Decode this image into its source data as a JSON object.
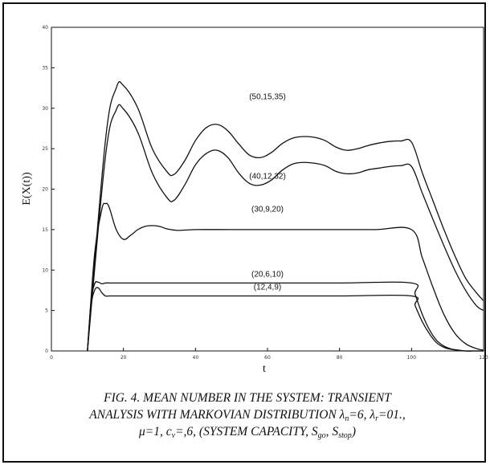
{
  "chart_data": {
    "type": "line",
    "xlabel": "t",
    "ylabel": "E(X(t))",
    "xlim": [
      0,
      120
    ],
    "ylim": [
      0,
      40
    ],
    "x_ticks": [
      "0",
      "20",
      "40",
      "60",
      "80",
      "100",
      "120"
    ],
    "y_ticks": [
      "0",
      "5",
      "10",
      "15",
      "20",
      "25",
      "30",
      "35",
      "40"
    ],
    "grid": false,
    "legend": "none",
    "series": [
      {
        "name": "(50,15,35)",
        "x": [
          10,
          15,
          18,
          20,
          24,
          28,
          32,
          34,
          37,
          40,
          43,
          46,
          49,
          52,
          55,
          58,
          61,
          64,
          67,
          70,
          73,
          76,
          79,
          82,
          85,
          88,
          91,
          94,
          97,
          100,
          103,
          106,
          109,
          112,
          115,
          118,
          120
        ],
        "y": [
          0,
          26,
          32.5,
          32.8,
          30.0,
          25.0,
          22.2,
          21.8,
          23.5,
          26.0,
          27.6,
          28.0,
          27.2,
          25.6,
          24.2,
          23.9,
          24.5,
          25.6,
          26.3,
          26.5,
          26.4,
          26.0,
          25.2,
          24.8,
          25.0,
          25.4,
          25.7,
          25.9,
          25.95,
          25.8,
          22.0,
          18.5,
          15.0,
          11.8,
          9.0,
          7.2,
          6.2
        ]
      },
      {
        "name": "(40,12,32)",
        "x": [
          10,
          15,
          18,
          20,
          24,
          28,
          32,
          34,
          37,
          40,
          43,
          46,
          49,
          52,
          55,
          58,
          61,
          64,
          67,
          70,
          73,
          76,
          79,
          82,
          85,
          88,
          91,
          94,
          97,
          100,
          103,
          106,
          109,
          112,
          115,
          118,
          120
        ],
        "y": [
          0,
          24,
          29.8,
          29.9,
          27.0,
          22.0,
          19.0,
          18.6,
          20.5,
          23.0,
          24.4,
          24.8,
          23.9,
          22.0,
          20.7,
          20.5,
          21.1,
          22.3,
          23.1,
          23.3,
          23.2,
          22.9,
          22.2,
          21.9,
          22.0,
          22.4,
          22.6,
          22.8,
          22.9,
          22.8,
          19.5,
          16.2,
          13.0,
          10.0,
          7.5,
          5.6,
          5.0
        ]
      },
      {
        "name": "(30,9,20)",
        "x": [
          10,
          12,
          14,
          15,
          16,
          18,
          20,
          22,
          24,
          26,
          28,
          30,
          32,
          35,
          40,
          50,
          60,
          70,
          80,
          90,
          100,
          103,
          106,
          109,
          112,
          115,
          118,
          120
        ],
        "y": [
          0,
          12,
          17.5,
          18.2,
          17.8,
          15.0,
          13.8,
          14.3,
          15.0,
          15.4,
          15.5,
          15.4,
          15.1,
          14.9,
          15.0,
          15.0,
          15.0,
          15.0,
          15.0,
          15.0,
          15.0,
          11.5,
          7.8,
          4.5,
          2.2,
          0.9,
          0.3,
          0.1
        ]
      },
      {
        "name": "(20,6,10)",
        "x": [
          10,
          11,
          12,
          13,
          14,
          15,
          16,
          20,
          40,
          60,
          80,
          100,
          101,
          103,
          105,
          107,
          109,
          111,
          113,
          115,
          117,
          120
        ],
        "y": [
          0,
          6.0,
          8.3,
          8.5,
          8.3,
          8.4,
          8.4,
          8.4,
          8.4,
          8.4,
          8.4,
          8.4,
          7.0,
          4.5,
          2.6,
          1.3,
          0.6,
          0.25,
          0.1,
          0,
          0,
          0
        ]
      },
      {
        "name": "(12,4,9)",
        "x": [
          10,
          11,
          12,
          13,
          14,
          15,
          16,
          20,
          40,
          60,
          80,
          100,
          101,
          103,
          105,
          107,
          109,
          111,
          113,
          115,
          117,
          120
        ],
        "y": [
          0,
          5.5,
          7.5,
          7.8,
          7.2,
          6.8,
          6.8,
          6.8,
          6.8,
          6.8,
          6.8,
          6.8,
          5.6,
          3.6,
          2.1,
          1.0,
          0.45,
          0.2,
          0.08,
          0,
          0,
          0
        ]
      }
    ]
  },
  "caption": {
    "prefix": "FIG. 4. MEAN NUMBER IN THE SYSTEM: TRANSIENT",
    "line2_a": "ANALYSIS WITH MARKOVIAN DISTRIBUTION λ",
    "sub_n": "n",
    "line2_b": "=6, λ",
    "sub_r": "r",
    "line2_c": "=01.,",
    "line3_a": "μ=1, c",
    "sub_v": "v",
    "line3_b": "=,6, (SYSTEM CAPACITY, S",
    "sub_go": "go",
    "line3_c": ", S",
    "sub_stop": "stop",
    "line3_d": ")"
  }
}
